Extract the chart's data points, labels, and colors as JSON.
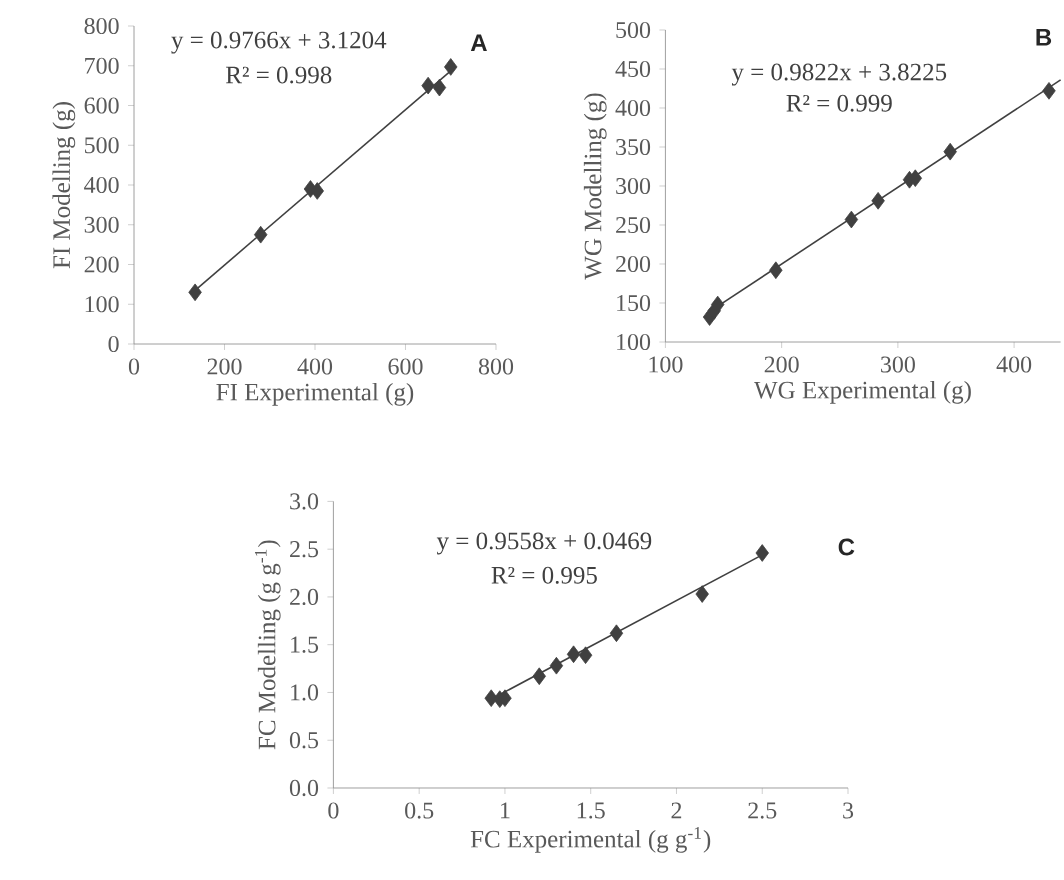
{
  "chart_data": [
    {
      "type": "scatter",
      "xlabel": "FI Experimental (g)",
      "ylabel": "FI Modelling (g)",
      "xlim": [
        0,
        800
      ],
      "ylim": [
        0,
        800
      ],
      "xticks": [
        0,
        200,
        400,
        600,
        800
      ],
      "yticks": [
        0,
        100,
        200,
        300,
        400,
        500,
        600,
        700,
        800
      ],
      "marker": "diamond",
      "grid": false,
      "annotations": [
        "y = 0.9766x + 3.1204",
        "R² = 0.998",
        "A"
      ],
      "series": [
        {
          "color": "#404040",
          "x": [
            135,
            280,
            390,
            405,
            650,
            675,
            700
          ],
          "values": [
            130,
            275,
            390,
            385,
            650,
            645,
            697
          ]
        },
        {
          "type": "line",
          "color": "#404040",
          "marker": "none",
          "x": [
            135,
            700
          ],
          "values": [
            135,
            687
          ]
        }
      ]
    },
    {
      "type": "scatter",
      "xlabel": "WG Experimental (g)",
      "ylabel": "WG Modelling (g)",
      "xlim": [
        100,
        440
      ],
      "ylim": [
        100,
        500
      ],
      "xticks": [
        100,
        200,
        300,
        400
      ],
      "yticks": [
        100,
        150,
        200,
        250,
        300,
        350,
        400,
        450,
        500
      ],
      "marker": "diamond",
      "grid": false,
      "annotations": [
        "y = 0.9822x + 3.8225",
        "R² = 0.999",
        "B"
      ],
      "series": [
        {
          "color": "#404040",
          "x": [
            138,
            142,
            145,
            195,
            260,
            283,
            310,
            315,
            345,
            430
          ],
          "values": [
            132,
            140,
            148,
            192,
            257,
            281,
            308,
            310,
            344,
            422
          ]
        },
        {
          "type": "line",
          "color": "#404040",
          "marker": "none",
          "x": [
            135,
            440
          ],
          "values": [
            136,
            436
          ]
        }
      ]
    },
    {
      "type": "scatter",
      "xlabel": "FC Experimental (g g$^{-1}$)",
      "ylabel": "FC Modelling (g g$^{-1}$)",
      "xlim": [
        0,
        3
      ],
      "ylim": [
        0,
        3
      ],
      "xticks": [
        0,
        0.5,
        1,
        1.5,
        2,
        2.5,
        3
      ],
      "yticks": [
        {
          "value": 0,
          "label": "0.0"
        },
        0.5,
        {
          "value": 1,
          "label": "1.0"
        },
        1.5,
        {
          "value": 2,
          "label": "2.0"
        },
        2.5,
        {
          "value": 3,
          "label": "3.0"
        }
      ],
      "marker": "diamond",
      "grid": false,
      "annotations": [
        "y = 0.9558x + 0.0469",
        "R² = 0.995",
        "C"
      ],
      "series": [
        {
          "color": "#404040",
          "x": [
            0.92,
            0.97,
            1.0,
            1.2,
            1.3,
            1.4,
            1.47,
            1.65,
            2.15,
            2.5
          ],
          "values": [
            0.94,
            0.93,
            0.94,
            1.17,
            1.28,
            1.4,
            1.39,
            1.62,
            2.03,
            2.46
          ]
        },
        {
          "type": "line",
          "color": "#404040",
          "marker": "none",
          "x": [
            0.92,
            2.5
          ],
          "values": [
            0.93,
            2.44
          ]
        }
      ]
    }
  ]
}
